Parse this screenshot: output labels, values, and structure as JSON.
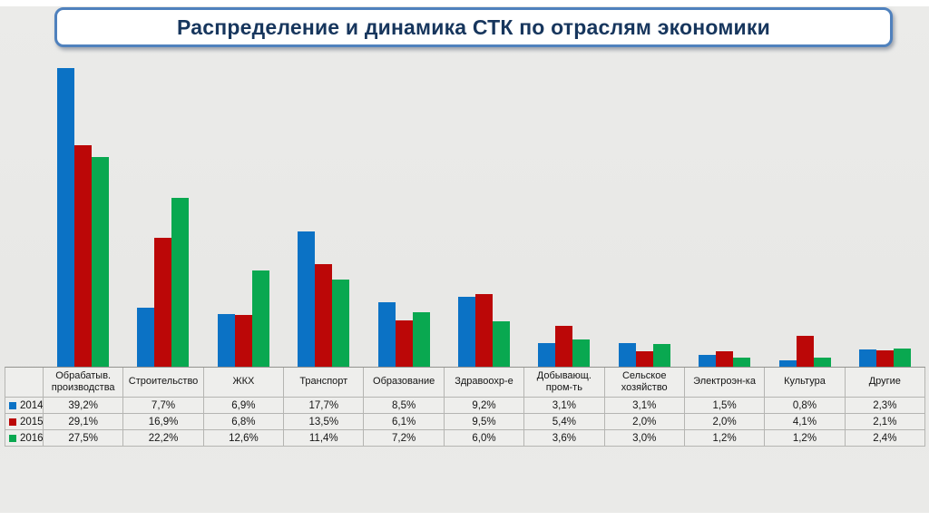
{
  "title": "Распределение и динамика СТК по отраслям экономики",
  "colors": {
    "series_2014": "#0b72c5",
    "series_2015": "#bb0707",
    "series_2016": "#09a850",
    "slide_bg": "#e9e9e7",
    "title_text": "#17365d",
    "title_border": "#4f81bd",
    "table_bg": "#eeeeec",
    "table_border": "#b5b5b2"
  },
  "chart_data": {
    "type": "bar",
    "title": "Распределение и динамика СТК по отраслям экономики",
    "categories": [
      "Обрабатыв. производства",
      "Строительство",
      "ЖКХ",
      "Транспорт",
      "Образование",
      "Здравоохр-е",
      "Добывающ. пром-ть",
      "Сельское хозяйство",
      "Электроэн-ка",
      "Культура",
      "Другие"
    ],
    "categories_display": [
      [
        "Обрабатыв.",
        "производства"
      ],
      [
        "Строительство"
      ],
      [
        "ЖКХ"
      ],
      [
        "Транспорт"
      ],
      [
        "Образование"
      ],
      [
        "Здравоохр-е"
      ],
      [
        "Добывающ.",
        "пром-ть"
      ],
      [
        "Сельское",
        "хозяйство"
      ],
      [
        "Электроэн-ка"
      ],
      [
        "Культура"
      ],
      [
        "Другие"
      ]
    ],
    "series": [
      {
        "name": "2014",
        "color": "#0b72c5",
        "values": [
          39.2,
          7.7,
          6.9,
          17.7,
          8.5,
          9.2,
          3.1,
          3.1,
          1.5,
          0.8,
          2.3
        ],
        "labels": [
          "39,2%",
          "7,7%",
          "6,9%",
          "17,7%",
          "8,5%",
          "9,2%",
          "3,1%",
          "3,1%",
          "1,5%",
          "0,8%",
          "2,3%"
        ]
      },
      {
        "name": "2015",
        "color": "#bb0707",
        "values": [
          29.1,
          16.9,
          6.8,
          13.5,
          6.1,
          9.5,
          5.4,
          2.0,
          2.0,
          4.1,
          2.1
        ],
        "labels": [
          "29,1%",
          "16,9%",
          "6,8%",
          "13,5%",
          "6,1%",
          "9,5%",
          "5,4%",
          "2,0%",
          "2,0%",
          "4,1%",
          "2,1%"
        ]
      },
      {
        "name": "2016",
        "color": "#09a850",
        "values": [
          27.5,
          22.2,
          12.6,
          11.4,
          7.2,
          6.0,
          3.6,
          3.0,
          1.2,
          1.2,
          2.4
        ],
        "labels": [
          "27,5%",
          "22,2%",
          "12,6%",
          "11,4%",
          "7,2%",
          "6,0%",
          "3,6%",
          "3,0%",
          "1,2%",
          "1,2%",
          "2,4%"
        ]
      }
    ],
    "ylim": [
      0,
      40.5
    ],
    "value_format": "percent_comma",
    "grid": false,
    "legend_position": "table-left-column",
    "data_table_shown": true
  }
}
